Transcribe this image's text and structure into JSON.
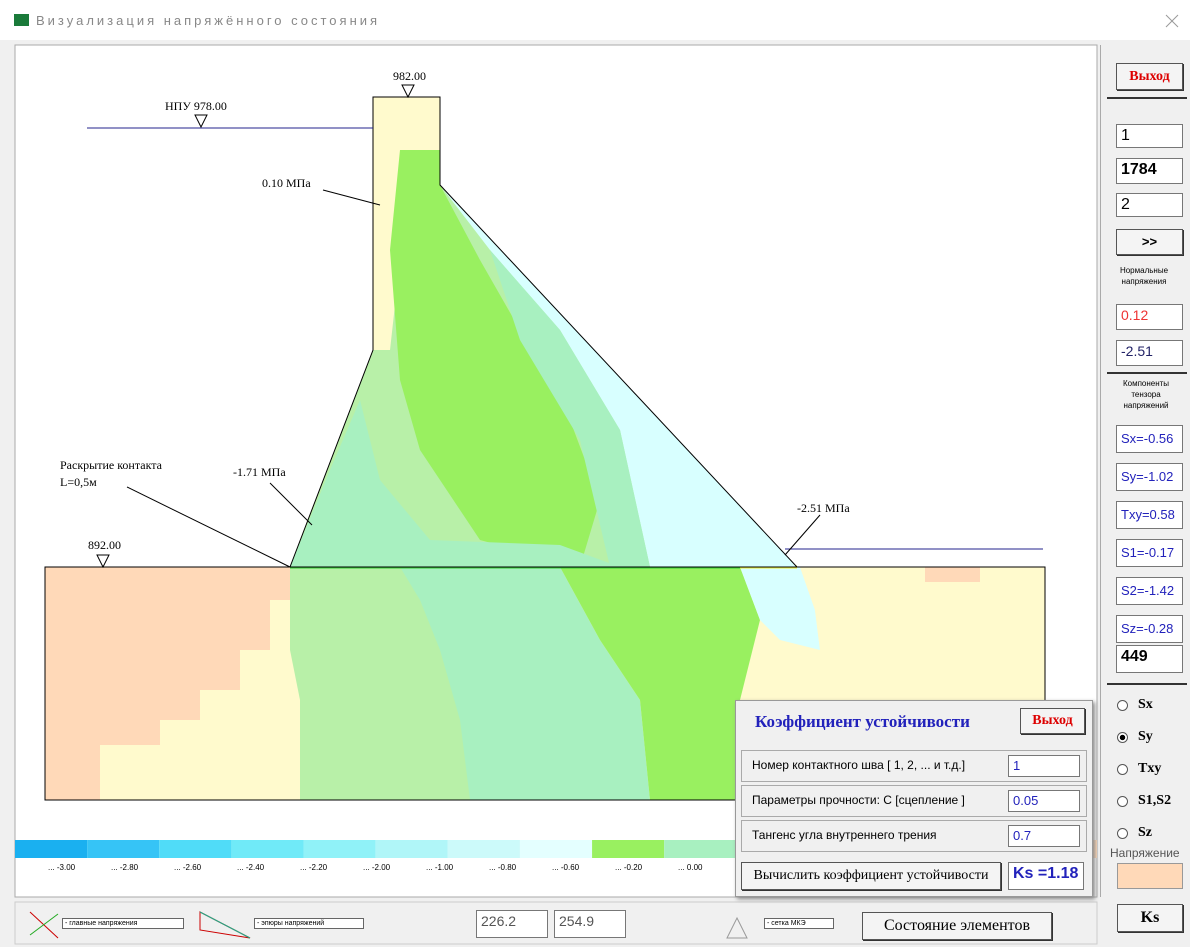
{
  "window": {
    "title": "Визуализация напряжённого состояния"
  },
  "drawing": {
    "npu": "НПУ 978.00",
    "crest": "982.00",
    "base": "892.00",
    "annotations": [
      "0.10 МПа",
      "Раскрытие контакта",
      "L=0,5м",
      "-1.71 МПа",
      "-2.51 МПа"
    ]
  },
  "legend": {
    "labels": [
      "... -3.00",
      "... -2.80",
      "... -2.60",
      "... -2.40",
      "... -2.20",
      "... -2.00",
      "... -1.00",
      "... -0.80",
      "... -0.60",
      "... -0.20",
      "... 0.00"
    ]
  },
  "sidebar": {
    "exit": "Выход",
    "inputs": [
      "1",
      "1784",
      "2"
    ],
    "next": ">>",
    "normal_caption": "Нормальные напряжения",
    "normal": [
      "0.12",
      "-2.51"
    ],
    "tensor_caption": "Компоненты тензора напряжений",
    "tensor": [
      "Sx=-0.56",
      "Sy=-1.02",
      "Txy=0.58",
      "S1=-0.17",
      "S2=-1.42",
      "Sz=-0.28"
    ],
    "element": "449",
    "radios": [
      "Sx",
      "Sy",
      "Txy",
      "S1,S2",
      "Sz"
    ],
    "radio_selected": 1,
    "stress_caption": "Напряжение",
    "ks": "Ks"
  },
  "dialog": {
    "title": "Коэффициент устойчивости",
    "exit": "Выход",
    "rows": [
      {
        "label": "Номер контактного шва [ 1, 2, ... и т.д.]",
        "value": "1"
      },
      {
        "label": "Параметры прочности:  С  [сцепление ]",
        "value": "0.05"
      },
      {
        "label": "Тангенс угла внутреннего трения",
        "value": "0.7"
      }
    ],
    "compute": "Вычислить коэффициент устойчивости",
    "result": "Ks =1.18"
  },
  "bottom": {
    "principal": "- главные напряжения",
    "diagram": "- эпюры напряжений",
    "coords": [
      "226.2",
      "254.9"
    ],
    "mesh": "- сетка МКЭ",
    "state": "Состояние элементов"
  }
}
